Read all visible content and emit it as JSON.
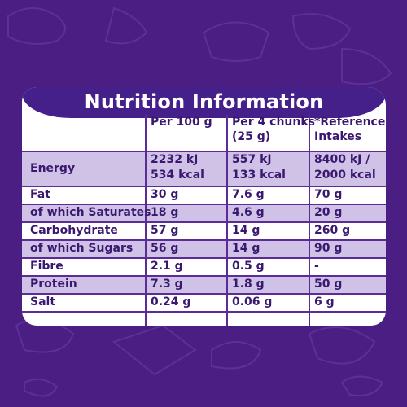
{
  "title": "Nutrition Information",
  "columns": [
    "",
    "Per 100 g",
    "Per 4 chunks (25 g)",
    "*Reference Intakes"
  ],
  "header": {
    "c1": "Per 100 g",
    "c2a": "Per 4 chunks",
    "c2b": "(25 g)",
    "c3a": "*Reference",
    "c3b": "Intakes"
  },
  "rows": [
    {
      "label": "Energy",
      "per100a": "2232 kJ",
      "per100b": "534 kcal",
      "per4a": "557 kJ",
      "per4b": "133 kcal",
      "ria": "8400 kJ /",
      "rib": "2000 kcal"
    },
    {
      "label": "Fat",
      "per100": "30 g",
      "per4": "7.6 g",
      "ri": "70 g"
    },
    {
      "label": "of which Saturates",
      "per100": "18 g",
      "per4": "4.6 g",
      "ri": "20 g"
    },
    {
      "label": "Carbohydrate",
      "per100": "57 g",
      "per4": "14 g",
      "ri": "260 g"
    },
    {
      "label": "of which Sugars",
      "per100": "56 g",
      "per4": "14 g",
      "ri": "90 g"
    },
    {
      "label": "Fibre",
      "per100": "2.1 g",
      "per4": "0.5 g",
      "ri": "-"
    },
    {
      "label": "Protein",
      "per100": "7.3 g",
      "per4": "1.8 g",
      "ri": "50 g"
    },
    {
      "label": "Salt",
      "per100": "0.24 g",
      "per4": "0.06 g",
      "ri": "6 g"
    }
  ],
  "colors": {
    "background": "#4b1e84",
    "panel": "#ffffff",
    "shade": "#cfc2e6",
    "text": "#3a1870"
  }
}
